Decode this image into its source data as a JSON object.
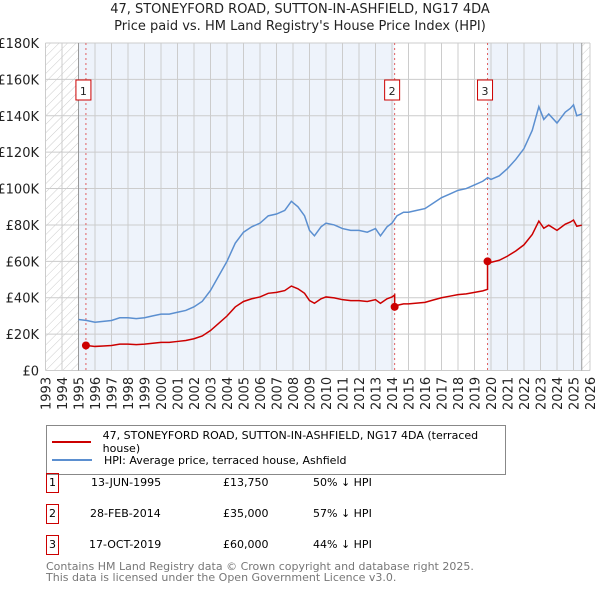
{
  "title_line1": "47, STONEYFORD ROAD, SUTTON-IN-ASHFIELD, NG17 4DA",
  "title_line2": "Price paid vs. HM Land Registry's House Price Index (HPI)",
  "colors": {
    "price_paid": "#cc0000",
    "hpi": "#5b8fd0",
    "shade": "#eef3fb",
    "grid": "#cccccc"
  },
  "chart_data": {
    "type": "line",
    "title": "Price paid vs. HM Land Registry's House Price Index (HPI)",
    "xlim": [
      1993,
      2026
    ],
    "ylim": [
      0,
      180000
    ],
    "y_ticks": [
      0,
      20000,
      40000,
      60000,
      80000,
      100000,
      120000,
      140000,
      160000,
      180000
    ],
    "y_tick_labels": [
      "£0",
      "£20K",
      "£40K",
      "£60K",
      "£80K",
      "£100K",
      "£120K",
      "£140K",
      "£160K",
      "£180K"
    ],
    "x_ticks": [
      1993,
      1994,
      1995,
      1996,
      1997,
      1998,
      1999,
      2000,
      2001,
      2002,
      2003,
      2004,
      2005,
      2006,
      2007,
      2008,
      2009,
      2010,
      2011,
      2012,
      2013,
      2014,
      2015,
      2016,
      2017,
      2018,
      2019,
      2020,
      2021,
      2022,
      2023,
      2024,
      2025,
      2026
    ],
    "grid": true,
    "data_range": [
      1995,
      2025.5
    ],
    "hpi_series": {
      "name": "HPI: Average price, terraced house, Ashfield",
      "points": [
        [
          1995,
          28000
        ],
        [
          1995.5,
          27500
        ],
        [
          1996,
          26500
        ],
        [
          1996.5,
          27000
        ],
        [
          1997,
          27500
        ],
        [
          1997.5,
          29000
        ],
        [
          1998,
          29000
        ],
        [
          1998.5,
          28500
        ],
        [
          1999,
          29000
        ],
        [
          1999.5,
          30000
        ],
        [
          2000,
          31000
        ],
        [
          2000.5,
          31000
        ],
        [
          2001,
          32000
        ],
        [
          2001.5,
          33000
        ],
        [
          2002,
          35000
        ],
        [
          2002.5,
          38000
        ],
        [
          2003,
          44000
        ],
        [
          2003.5,
          52000
        ],
        [
          2004,
          60000
        ],
        [
          2004.5,
          70000
        ],
        [
          2005,
          76000
        ],
        [
          2005.5,
          79000
        ],
        [
          2006,
          81000
        ],
        [
          2006.5,
          85000
        ],
        [
          2007,
          86000
        ],
        [
          2007.5,
          88000
        ],
        [
          2007.9,
          93000
        ],
        [
          2008.3,
          90000
        ],
        [
          2008.7,
          85000
        ],
        [
          2009,
          77000
        ],
        [
          2009.3,
          74000
        ],
        [
          2009.7,
          79000
        ],
        [
          2010,
          81000
        ],
        [
          2010.5,
          80000
        ],
        [
          2011,
          78000
        ],
        [
          2011.5,
          77000
        ],
        [
          2012,
          77000
        ],
        [
          2012.5,
          76000
        ],
        [
          2013,
          78000
        ],
        [
          2013.3,
          74000
        ],
        [
          2013.7,
          79000
        ],
        [
          2014,
          81000
        ],
        [
          2014.3,
          85000
        ],
        [
          2014.7,
          87000
        ],
        [
          2015,
          87000
        ],
        [
          2015.5,
          88000
        ],
        [
          2016,
          89000
        ],
        [
          2016.5,
          92000
        ],
        [
          2017,
          95000
        ],
        [
          2017.5,
          97000
        ],
        [
          2018,
          99000
        ],
        [
          2018.5,
          100000
        ],
        [
          2019,
          102000
        ],
        [
          2019.5,
          104000
        ],
        [
          2019.8,
          106000
        ],
        [
          2020,
          105000
        ],
        [
          2020.5,
          107000
        ],
        [
          2021,
          111000
        ],
        [
          2021.5,
          116000
        ],
        [
          2022,
          122000
        ],
        [
          2022.5,
          132000
        ],
        [
          2022.9,
          145000
        ],
        [
          2023.2,
          138000
        ],
        [
          2023.5,
          141000
        ],
        [
          2024,
          136000
        ],
        [
          2024.5,
          142000
        ],
        [
          2024.8,
          144000
        ],
        [
          2025,
          146000
        ],
        [
          2025.2,
          140000
        ],
        [
          2025.5,
          141000
        ]
      ]
    },
    "price_series": {
      "name": "47, STONEYFORD ROAD, SUTTON-IN-ASHFIELD, NG17 4DA (terraced house)",
      "note_sales": [
        [
          1995.45,
          13750
        ],
        [
          2014.16,
          35000
        ],
        [
          2019.79,
          60000
        ]
      ]
    }
  },
  "legend": {
    "price_label": "47, STONEYFORD ROAD, SUTTON-IN-ASHFIELD, NG17 4DA (terraced house)",
    "hpi_label": "HPI: Average price, terraced house, Ashfield"
  },
  "sales": [
    {
      "num": "1",
      "date": "13-JUN-1995",
      "price": "£13,750",
      "hpi": "50% ↓ HPI"
    },
    {
      "num": "2",
      "date": "28-FEB-2014",
      "price": "£35,000",
      "hpi": "57% ↓ HPI"
    },
    {
      "num": "3",
      "date": "17-OCT-2019",
      "price": "£60,000",
      "hpi": "44% ↓ HPI"
    }
  ],
  "footer": {
    "line1": "Contains HM Land Registry data © Crown copyright and database right 2025.",
    "line2": "This data is licensed under the Open Government Licence v3.0."
  }
}
